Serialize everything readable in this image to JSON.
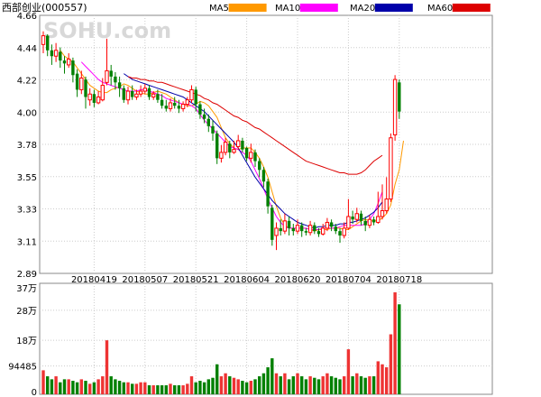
{
  "title": "西部创业(000557)",
  "watermark": "SOHU.com",
  "chart_data": {
    "type": "candlestick",
    "legend": [
      {
        "name": "MA5",
        "color": "#ff9900"
      },
      {
        "name": "MA10",
        "color": "#ff00ff"
      },
      {
        "name": "MA20",
        "color": "#0000aa"
      },
      {
        "name": "MA60",
        "color": "#dd0000"
      }
    ],
    "colors": {
      "up": "#ff0000",
      "down": "#008000",
      "volume_up": "#ee3333",
      "volume_down": "#008000"
    },
    "price_axis": {
      "ticks": [
        "4.66",
        "4.44",
        "4.22",
        "4.00",
        "3.78",
        "3.55",
        "3.33",
        "3.11",
        "2.89"
      ],
      "min": 2.89,
      "max": 4.66
    },
    "volume_axis": {
      "ticks": [
        "37万",
        "28万",
        "18万",
        "94485",
        "0"
      ],
      "values": [
        370000,
        280000,
        180000,
        94485,
        0
      ],
      "max": 370000
    },
    "date_labels": [
      {
        "label": "20180419",
        "index": 12
      },
      {
        "label": "20180507",
        "index": 24
      },
      {
        "label": "20180521",
        "index": 36
      },
      {
        "label": "20180604",
        "index": 48
      },
      {
        "label": "20180620",
        "index": 60
      },
      {
        "label": "20180704",
        "index": 72
      },
      {
        "label": "20180718",
        "index": 84
      }
    ],
    "candles": [
      [
        4.46,
        4.52,
        4.55,
        4.4
      ],
      [
        4.52,
        4.42,
        4.53,
        4.38
      ],
      [
        4.42,
        4.38,
        4.46,
        4.32
      ],
      [
        4.38,
        4.42,
        4.47,
        4.34
      ],
      [
        4.41,
        4.35,
        4.44,
        4.3
      ],
      [
        4.35,
        4.33,
        4.38,
        4.26
      ],
      [
        4.32,
        4.36,
        4.4,
        4.3
      ],
      [
        4.35,
        4.25,
        4.37,
        4.2
      ],
      [
        4.26,
        4.15,
        4.29,
        4.1
      ],
      [
        4.15,
        4.23,
        4.28,
        4.12
      ],
      [
        4.22,
        4.1,
        4.24,
        4.02
      ],
      [
        4.08,
        4.12,
        4.16,
        4.04
      ],
      [
        4.12,
        4.06,
        4.15,
        4.03
      ],
      [
        4.06,
        4.1,
        4.14,
        4.05
      ],
      [
        4.08,
        4.18,
        4.23,
        4.07
      ],
      [
        4.2,
        4.28,
        4.5,
        4.18
      ],
      [
        4.28,
        4.24,
        4.32,
        4.18
      ],
      [
        4.24,
        4.2,
        4.27,
        4.15
      ],
      [
        4.2,
        4.16,
        4.24,
        4.1
      ],
      [
        4.16,
        4.08,
        4.18,
        4.06
      ],
      [
        4.08,
        4.14,
        4.17,
        4.05
      ],
      [
        4.14,
        4.1,
        4.18,
        4.08
      ],
      [
        4.1,
        4.12,
        4.15,
        4.08
      ],
      [
        4.12,
        4.14,
        4.18,
        4.1
      ],
      [
        4.14,
        4.16,
        4.19,
        4.12
      ],
      [
        4.16,
        4.1,
        4.18,
        4.08
      ],
      [
        4.1,
        4.12,
        4.14,
        4.08
      ],
      [
        4.12,
        4.08,
        4.15,
        4.06
      ],
      [
        4.08,
        4.04,
        4.12,
        4.02
      ],
      [
        4.04,
        4.02,
        4.08,
        4.0
      ],
      [
        4.02,
        4.06,
        4.09,
        4.0
      ],
      [
        4.06,
        4.04,
        4.1,
        4.02
      ],
      [
        4.04,
        4.02,
        4.08,
        3.99
      ],
      [
        4.02,
        4.05,
        4.07,
        4.0
      ],
      [
        4.05,
        4.08,
        4.1,
        4.03
      ],
      [
        4.08,
        4.15,
        4.18,
        4.06
      ],
      [
        4.15,
        4.05,
        4.17,
        4.0
      ],
      [
        4.05,
        3.98,
        4.07,
        3.95
      ],
      [
        3.98,
        3.95,
        4.02,
        3.92
      ],
      [
        3.95,
        3.9,
        3.98,
        3.86
      ],
      [
        3.9,
        3.85,
        3.94,
        3.8
      ],
      [
        3.85,
        3.68,
        3.87,
        3.64
      ],
      [
        3.68,
        3.72,
        3.77,
        3.65
      ],
      [
        3.72,
        3.79,
        3.82,
        3.7
      ],
      [
        3.78,
        3.72,
        3.8,
        3.68
      ],
      [
        3.72,
        3.74,
        3.8,
        3.71
      ],
      [
        3.76,
        3.8,
        3.84,
        3.74
      ],
      [
        3.8,
        3.74,
        3.82,
        3.72
      ],
      [
        3.75,
        3.68,
        3.76,
        3.66
      ],
      [
        3.68,
        3.72,
        3.78,
        3.65
      ],
      [
        3.72,
        3.66,
        3.74,
        3.62
      ],
      [
        3.66,
        3.6,
        3.68,
        3.55
      ],
      [
        3.6,
        3.52,
        3.62,
        3.48
      ],
      [
        3.52,
        3.35,
        3.54,
        3.3
      ],
      [
        3.34,
        3.12,
        3.36,
        3.08
      ],
      [
        3.15,
        3.2,
        3.24,
        3.05
      ],
      [
        3.2,
        3.18,
        3.26,
        3.15
      ],
      [
        3.18,
        3.25,
        3.3,
        3.16
      ],
      [
        3.25,
        3.2,
        3.28,
        3.15
      ],
      [
        3.2,
        3.18,
        3.23,
        3.15
      ],
      [
        3.18,
        3.22,
        3.26,
        3.16
      ],
      [
        3.22,
        3.18,
        3.24,
        3.14
      ],
      [
        3.18,
        3.17,
        3.2,
        3.15
      ],
      [
        3.17,
        3.22,
        3.25,
        3.15
      ],
      [
        3.22,
        3.18,
        3.24,
        3.16
      ],
      [
        3.18,
        3.16,
        3.2,
        3.14
      ],
      [
        3.16,
        3.2,
        3.23,
        3.15
      ],
      [
        3.2,
        3.24,
        3.27,
        3.18
      ],
      [
        3.24,
        3.21,
        3.26,
        3.18
      ],
      [
        3.21,
        3.18,
        3.23,
        3.16
      ],
      [
        3.18,
        3.15,
        3.2,
        3.1
      ],
      [
        3.15,
        3.2,
        3.24,
        3.13
      ],
      [
        3.2,
        3.28,
        3.4,
        3.19
      ],
      [
        3.28,
        3.26,
        3.32,
        3.23
      ],
      [
        3.26,
        3.3,
        3.34,
        3.24
      ],
      [
        3.3,
        3.25,
        3.32,
        3.22
      ],
      [
        3.25,
        3.22,
        3.28,
        3.18
      ],
      [
        3.22,
        3.26,
        3.29,
        3.2
      ],
      [
        3.26,
        3.24,
        3.28,
        3.22
      ],
      [
        3.24,
        3.28,
        3.45,
        3.23
      ],
      [
        3.28,
        3.32,
        3.5,
        3.26
      ],
      [
        3.32,
        3.4,
        3.55,
        3.3
      ],
      [
        3.4,
        3.82,
        3.85,
        3.38
      ],
      [
        3.84,
        4.22,
        4.25,
        3.8
      ],
      [
        4.2,
        4.0,
        4.22,
        3.95
      ]
    ],
    "ma": [
      {
        "name": "MA5",
        "color": "#ff9900",
        "start": 4,
        "values": [
          4.42,
          4.38,
          4.36,
          4.34,
          4.3,
          4.26,
          4.22,
          4.18,
          4.16,
          4.14,
          4.13,
          4.13,
          4.15,
          4.16,
          4.17,
          4.19,
          4.18,
          4.16,
          4.14,
          4.13,
          4.12,
          4.12,
          4.13,
          4.14,
          4.13,
          4.12,
          4.1,
          4.08,
          4.06,
          4.05,
          4.04,
          4.04,
          4.05,
          4.07,
          4.06,
          4.04,
          4.0,
          3.96,
          3.89,
          3.82,
          3.78,
          3.75,
          3.74,
          3.75,
          3.75,
          3.75,
          3.72,
          3.68,
          3.62,
          3.55,
          3.45,
          3.35,
          3.27,
          3.22,
          3.2,
          3.2,
          3.2,
          3.2,
          3.2,
          3.19,
          3.18,
          3.19,
          3.19,
          3.19,
          3.2,
          3.2,
          3.2,
          3.19,
          3.19,
          3.21,
          3.23,
          3.25,
          3.26,
          3.25,
          3.25,
          3.25,
          3.27,
          3.3,
          3.36,
          3.5,
          3.6,
          3.8
        ]
      },
      {
        "name": "MA10",
        "color": "#ff00ff",
        "start": 9,
        "values": [
          4.34,
          4.31,
          4.28,
          4.25,
          4.22,
          4.2,
          4.19,
          4.18,
          4.17,
          4.16,
          4.15,
          4.14,
          4.14,
          4.14,
          4.15,
          4.15,
          4.14,
          4.13,
          4.12,
          4.11,
          4.09,
          4.08,
          4.07,
          4.06,
          4.05,
          4.05,
          4.04,
          4.02,
          3.98,
          3.94,
          3.91,
          3.88,
          3.85,
          3.82,
          3.79,
          3.76,
          3.75,
          3.74,
          3.72,
          3.7,
          3.66,
          3.6,
          3.54,
          3.47,
          3.4,
          3.34,
          3.28,
          3.24,
          3.21,
          3.2,
          3.2,
          3.2,
          3.2,
          3.2,
          3.19,
          3.19,
          3.19,
          3.2,
          3.2,
          3.2,
          3.2,
          3.21,
          3.22,
          3.22,
          3.22,
          3.22,
          3.22,
          3.23,
          3.26,
          3.3,
          3.37,
          3.45
        ]
      },
      {
        "name": "MA20",
        "color": "#0000aa",
        "start": 19,
        "values": [
          4.26,
          4.24,
          4.22,
          4.21,
          4.2,
          4.19,
          4.18,
          4.17,
          4.16,
          4.15,
          4.14,
          4.13,
          4.12,
          4.11,
          4.1,
          4.08,
          4.06,
          4.04,
          4.02,
          4.0,
          3.97,
          3.94,
          3.91,
          3.88,
          3.85,
          3.82,
          3.79,
          3.75,
          3.7,
          3.65,
          3.6,
          3.55,
          3.51,
          3.47,
          3.43,
          3.39,
          3.36,
          3.33,
          3.3,
          3.28,
          3.26,
          3.24,
          3.23,
          3.22,
          3.21,
          3.2,
          3.21,
          3.21,
          3.22,
          3.22,
          3.22,
          3.23,
          3.23,
          3.24,
          3.24,
          3.25,
          3.26,
          3.27,
          3.29,
          3.31,
          3.34,
          3.38
        ]
      },
      {
        "name": "MA60",
        "color": "#dd0000",
        "start": 20,
        "values": [
          4.24,
          4.23,
          4.23,
          4.22,
          4.22,
          4.21,
          4.21,
          4.2,
          4.2,
          4.19,
          4.18,
          4.17,
          4.16,
          4.15,
          4.14,
          4.13,
          4.12,
          4.11,
          4.09,
          4.08,
          4.06,
          4.05,
          4.03,
          4.01,
          3.99,
          3.97,
          3.96,
          3.94,
          3.93,
          3.91,
          3.89,
          3.88,
          3.86,
          3.84,
          3.82,
          3.8,
          3.78,
          3.76,
          3.74,
          3.72,
          3.7,
          3.68,
          3.66,
          3.65,
          3.64,
          3.63,
          3.62,
          3.61,
          3.6,
          3.59,
          3.58,
          3.58,
          3.57,
          3.57,
          3.57,
          3.58,
          3.6,
          3.63,
          3.66,
          3.68,
          3.7
        ]
      }
    ],
    "volume": [
      80000,
      60000,
      50000,
      60000,
      40000,
      50000,
      50000,
      45000,
      40000,
      50000,
      45000,
      35000,
      40000,
      50000,
      60000,
      180000,
      60000,
      50000,
      45000,
      40000,
      40000,
      35000,
      35000,
      40000,
      40000,
      30000,
      30000,
      30000,
      30000,
      30000,
      35000,
      30000,
      30000,
      30000,
      35000,
      60000,
      40000,
      45000,
      40000,
      50000,
      55000,
      100000,
      60000,
      70000,
      60000,
      55000,
      50000,
      45000,
      40000,
      45000,
      50000,
      60000,
      70000,
      90000,
      120000,
      70000,
      60000,
      70000,
      50000,
      60000,
      70000,
      60000,
      50000,
      60000,
      55000,
      50000,
      60000,
      70000,
      60000,
      55000,
      50000,
      60000,
      150000,
      60000,
      70000,
      60000,
      55000,
      60000,
      60000,
      110000,
      100000,
      90000,
      200000,
      340000,
      300000
    ]
  }
}
